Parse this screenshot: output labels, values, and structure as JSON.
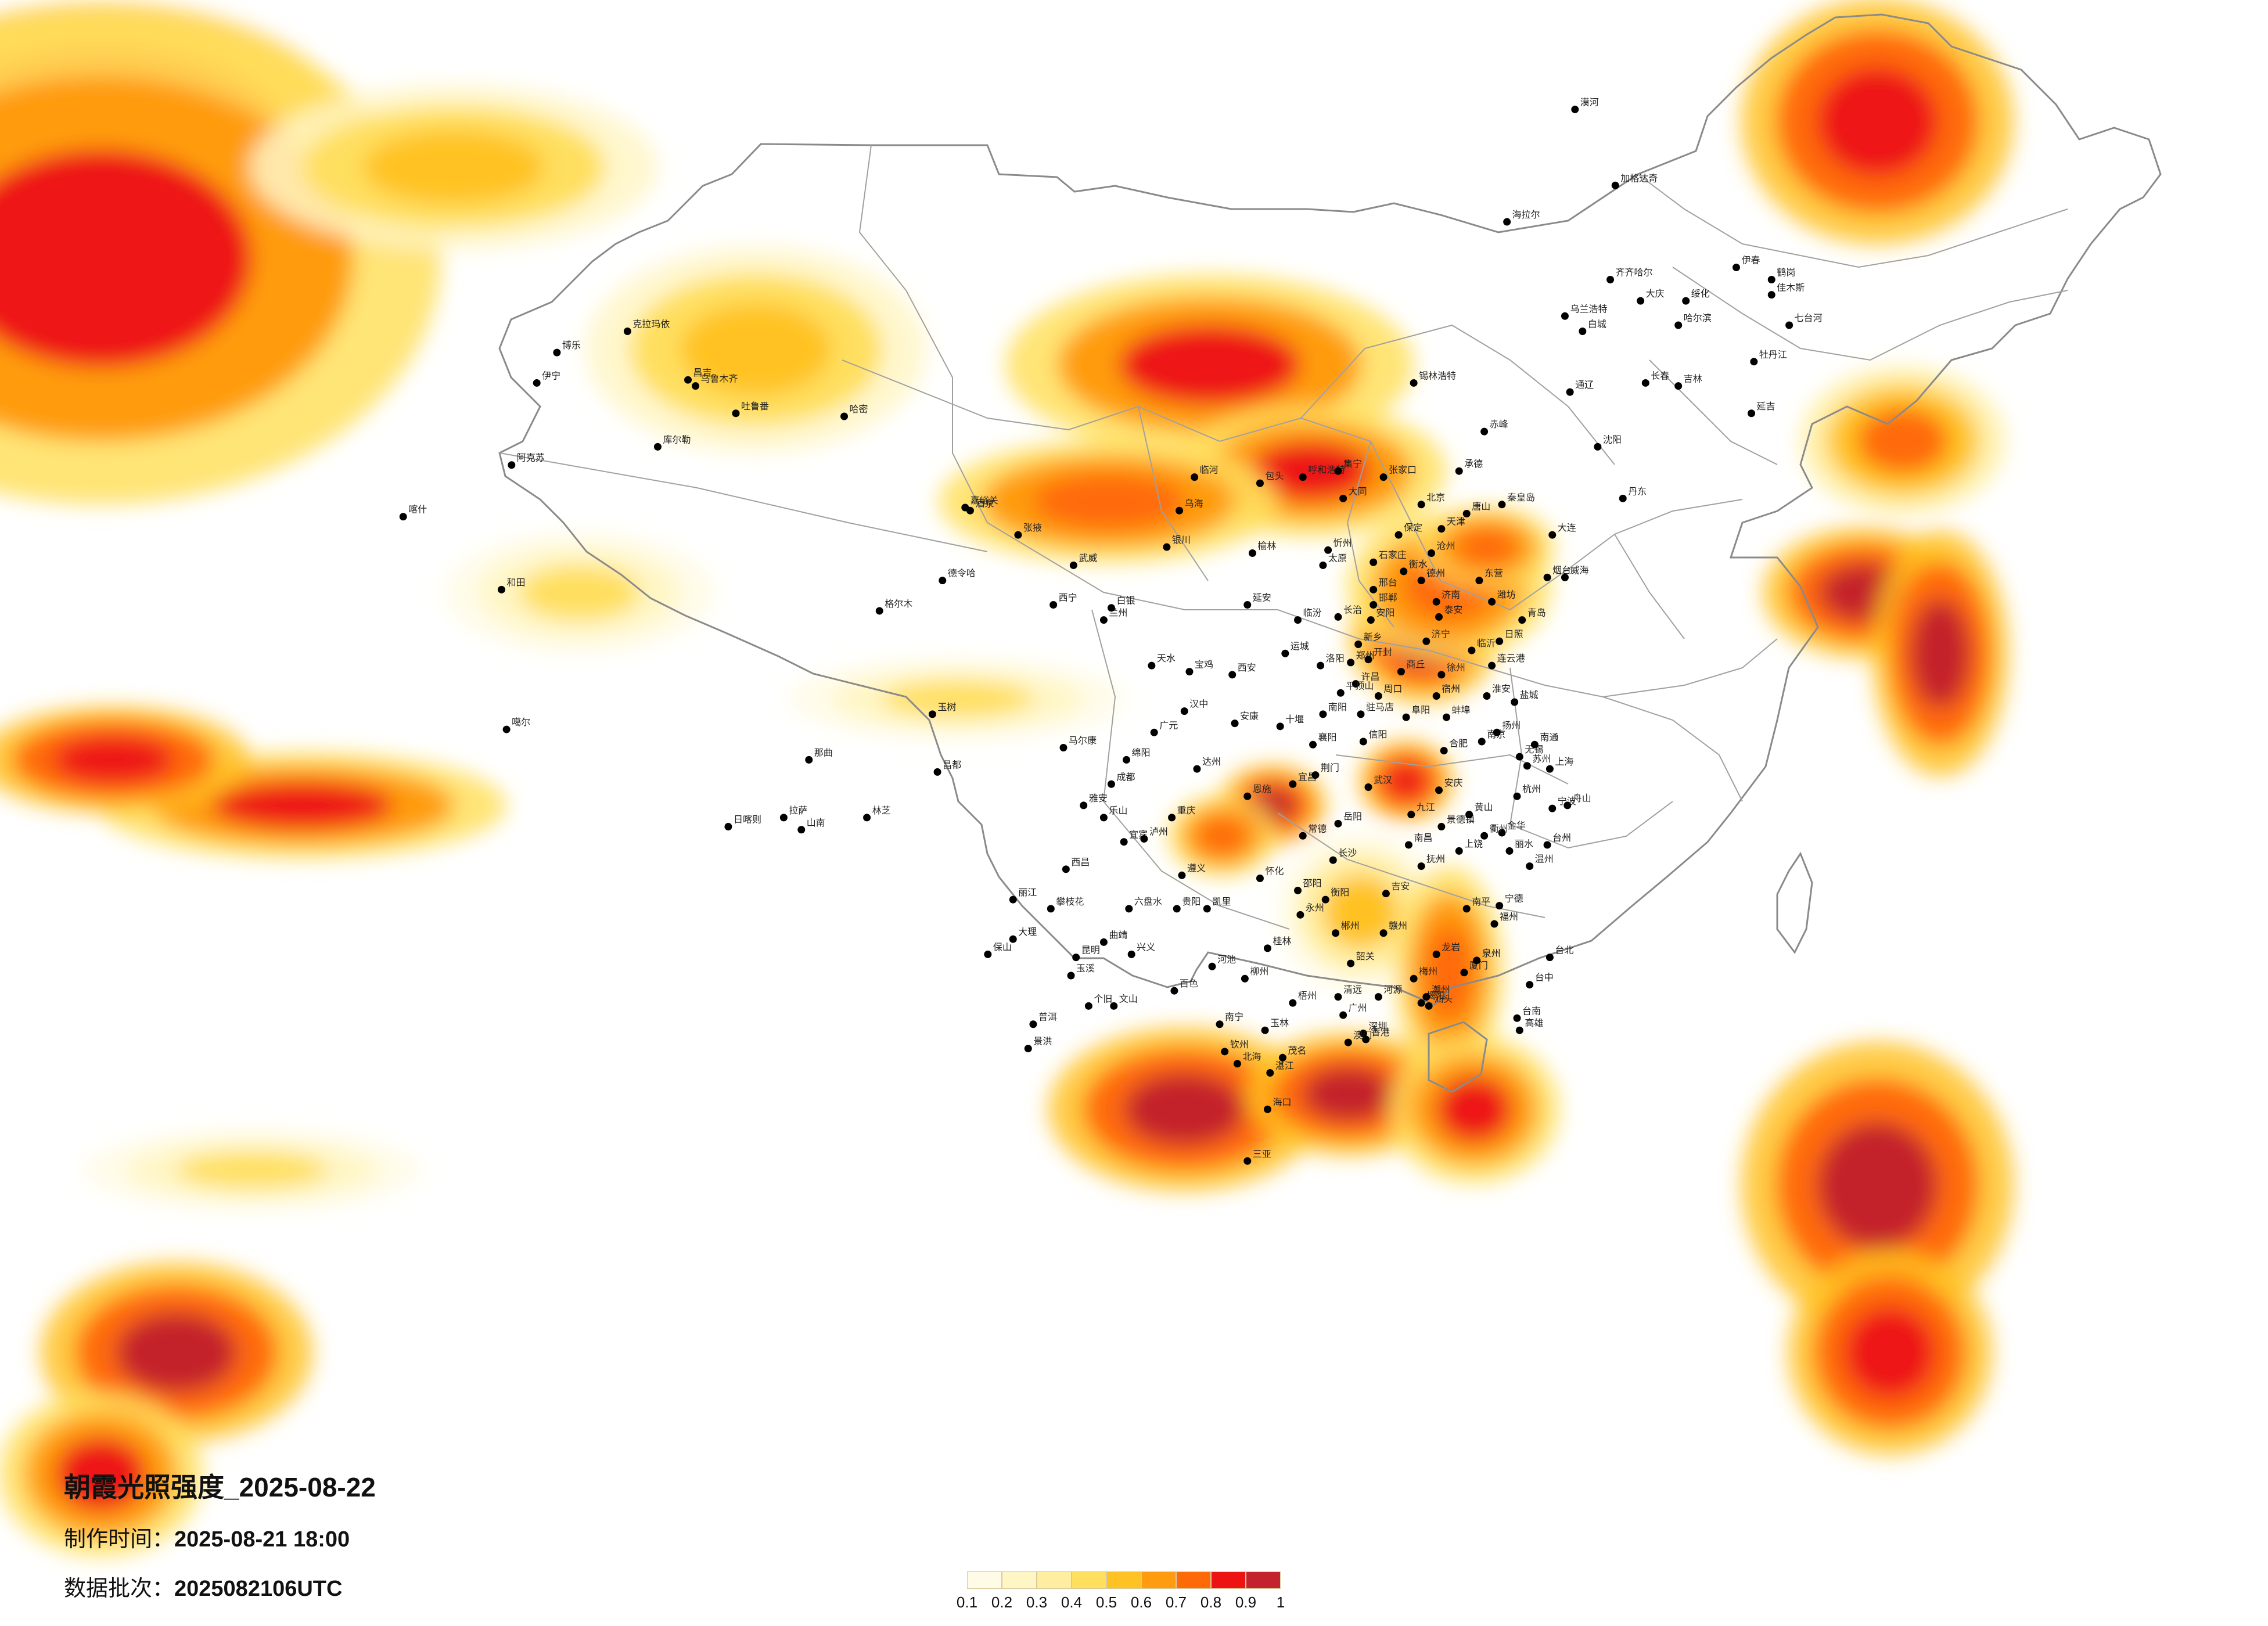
{
  "map": {
    "title": "朝霞光照强度_2025-08-22",
    "produced_label": "制作时间：",
    "produced_value": "2025-08-21 18:00",
    "batch_label": "数据批次：",
    "batch_value": "2025082106UTC"
  },
  "legend": {
    "colors": [
      "#fffbe6",
      "#fff6c6",
      "#ffeea0",
      "#ffdf5e",
      "#ffc223",
      "#ff9b0f",
      "#ff6a08",
      "#ee1313",
      "#c4222c"
    ],
    "labels": [
      "0.1",
      "0.2",
      "0.3",
      "0.4",
      "0.5",
      "0.6",
      "0.7",
      "0.8",
      "0.9",
      "1"
    ]
  },
  "cities": [
    {
      "name": "漠河",
      "lon": 122.5,
      "lat": 52.9
    },
    {
      "name": "加格达奇",
      "lon": 124.1,
      "lat": 50.4
    },
    {
      "name": "海拉尔",
      "lon": 119.8,
      "lat": 49.2
    },
    {
      "name": "齐齐哈尔",
      "lon": 123.9,
      "lat": 47.3
    },
    {
      "name": "大庆",
      "lon": 125.1,
      "lat": 46.6
    },
    {
      "name": "伊春",
      "lon": 128.9,
      "lat": 47.7
    },
    {
      "name": "鹤岗",
      "lon": 130.3,
      "lat": 47.3
    },
    {
      "name": "佳木斯",
      "lon": 130.3,
      "lat": 46.8
    },
    {
      "name": "绥化",
      "lon": 126.9,
      "lat": 46.6
    },
    {
      "name": "哈尔滨",
      "lon": 126.6,
      "lat": 45.8
    },
    {
      "name": "七台河",
      "lon": 131.0,
      "lat": 45.8
    },
    {
      "name": "牡丹江",
      "lon": 129.6,
      "lat": 44.6
    },
    {
      "name": "乌兰浩特",
      "lon": 122.1,
      "lat": 46.1
    },
    {
      "name": "白城",
      "lon": 122.8,
      "lat": 45.6
    },
    {
      "name": "长春",
      "lon": 125.3,
      "lat": 43.9
    },
    {
      "name": "吉林",
      "lon": 126.6,
      "lat": 43.8
    },
    {
      "name": "通辽",
      "lon": 122.3,
      "lat": 43.6
    },
    {
      "name": "锡林浩特",
      "lon": 116.1,
      "lat": 43.9
    },
    {
      "name": "延吉",
      "lon": 129.5,
      "lat": 42.9
    },
    {
      "name": "沈阳",
      "lon": 123.4,
      "lat": 41.8
    },
    {
      "name": "赤峰",
      "lon": 118.9,
      "lat": 42.3
    },
    {
      "name": "大连",
      "lon": 121.6,
      "lat": 38.9
    },
    {
      "name": "丹东",
      "lon": 124.4,
      "lat": 40.1
    },
    {
      "name": "呼和浩特",
      "lon": 111.7,
      "lat": 40.8
    },
    {
      "name": "包头",
      "lon": 110.0,
      "lat": 40.6
    },
    {
      "name": "集宁",
      "lon": 113.1,
      "lat": 41.0
    },
    {
      "name": "张家口",
      "lon": 114.9,
      "lat": 40.8
    },
    {
      "name": "北京",
      "lon": 116.4,
      "lat": 39.9
    },
    {
      "name": "承德",
      "lon": 117.9,
      "lat": 41.0
    },
    {
      "name": "天津",
      "lon": 117.2,
      "lat": 39.1
    },
    {
      "name": "唐山",
      "lon": 118.2,
      "lat": 39.6
    },
    {
      "name": "秦皇岛",
      "lon": 119.6,
      "lat": 39.9
    },
    {
      "name": "保定",
      "lon": 115.5,
      "lat": 38.9
    },
    {
      "name": "石家庄",
      "lon": 114.5,
      "lat": 38.0
    },
    {
      "name": "大同",
      "lon": 113.3,
      "lat": 40.1
    },
    {
      "name": "太原",
      "lon": 112.5,
      "lat": 37.9
    },
    {
      "name": "忻州",
      "lon": 112.7,
      "lat": 38.4
    },
    {
      "name": "临河",
      "lon": 107.4,
      "lat": 40.8
    },
    {
      "name": "乌海",
      "lon": 106.8,
      "lat": 39.7
    },
    {
      "name": "银川",
      "lon": 106.3,
      "lat": 38.5
    },
    {
      "name": "榆林",
      "lon": 109.7,
      "lat": 38.3
    },
    {
      "name": "延安",
      "lon": 109.5,
      "lat": 36.6
    },
    {
      "name": "兰州",
      "lon": 103.8,
      "lat": 36.1
    },
    {
      "name": "西宁",
      "lon": 101.8,
      "lat": 36.6
    },
    {
      "name": "白银",
      "lon": 104.1,
      "lat": 36.5
    },
    {
      "name": "德令哈",
      "lon": 97.4,
      "lat": 37.4
    },
    {
      "name": "格尔木",
      "lon": 94.9,
      "lat": 36.4
    },
    {
      "name": "酒泉",
      "lon": 98.5,
      "lat": 39.7
    },
    {
      "name": "嘉峪关",
      "lon": 98.3,
      "lat": 39.8
    },
    {
      "name": "张掖",
      "lon": 100.4,
      "lat": 38.9
    },
    {
      "name": "武威",
      "lon": 102.6,
      "lat": 37.9
    },
    {
      "name": "哈密",
      "lon": 93.5,
      "lat": 42.8
    },
    {
      "name": "吐鲁番",
      "lon": 89.2,
      "lat": 42.9
    },
    {
      "name": "乌鲁木齐",
      "lon": 87.6,
      "lat": 43.8
    },
    {
      "name": "昌吉",
      "lon": 87.3,
      "lat": 44.0
    },
    {
      "name": "克拉玛依",
      "lon": 84.9,
      "lat": 45.6
    },
    {
      "name": "伊宁",
      "lon": 81.3,
      "lat": 43.9
    },
    {
      "name": "博乐",
      "lon": 82.1,
      "lat": 44.9
    },
    {
      "name": "库尔勒",
      "lon": 86.1,
      "lat": 41.8
    },
    {
      "name": "阿克苏",
      "lon": 80.3,
      "lat": 41.2
    },
    {
      "name": "喀什",
      "lon": 76.0,
      "lat": 39.5
    },
    {
      "name": "和田",
      "lon": 79.9,
      "lat": 37.1
    },
    {
      "name": "噶尔",
      "lon": 80.1,
      "lat": 32.5
    },
    {
      "name": "那曲",
      "lon": 92.1,
      "lat": 31.5
    },
    {
      "name": "日喀则",
      "lon": 88.9,
      "lat": 29.3
    },
    {
      "name": "拉萨",
      "lon": 91.1,
      "lat": 29.6
    },
    {
      "name": "山南",
      "lon": 91.8,
      "lat": 29.2
    },
    {
      "name": "林芝",
      "lon": 94.4,
      "lat": 29.6
    },
    {
      "name": "昌都",
      "lon": 97.2,
      "lat": 31.1
    },
    {
      "name": "玉树",
      "lon": 97.0,
      "lat": 33.0
    },
    {
      "name": "马尔康",
      "lon": 102.2,
      "lat": 31.9
    },
    {
      "name": "成都",
      "lon": 104.1,
      "lat": 30.7
    },
    {
      "name": "绵阳",
      "lon": 104.7,
      "lat": 31.5
    },
    {
      "name": "广元",
      "lon": 105.8,
      "lat": 32.4
    },
    {
      "name": "汉中",
      "lon": 107.0,
      "lat": 33.1
    },
    {
      "name": "宝鸡",
      "lon": 107.2,
      "lat": 34.4
    },
    {
      "name": "天水",
      "lon": 105.7,
      "lat": 34.6
    },
    {
      "name": "西安",
      "lon": 108.9,
      "lat": 34.3
    },
    {
      "name": "安康",
      "lon": 109.0,
      "lat": 32.7
    },
    {
      "name": "雅安",
      "lon": 103.0,
      "lat": 30.0
    },
    {
      "name": "乐山",
      "lon": 103.8,
      "lat": 29.6
    },
    {
      "name": "西昌",
      "lon": 102.3,
      "lat": 27.9
    },
    {
      "name": "攀枝花",
      "lon": 101.7,
      "lat": 26.6
    },
    {
      "name": "丽江",
      "lon": 100.2,
      "lat": 26.9
    },
    {
      "name": "大理",
      "lon": 100.2,
      "lat": 25.6
    },
    {
      "name": "保山",
      "lon": 99.2,
      "lat": 25.1
    },
    {
      "name": "昆明",
      "lon": 102.7,
      "lat": 25.0
    },
    {
      "name": "曲靖",
      "lon": 103.8,
      "lat": 25.5
    },
    {
      "name": "玉溪",
      "lon": 102.5,
      "lat": 24.4
    },
    {
      "name": "普洱",
      "lon": 101.0,
      "lat": 22.8
    },
    {
      "name": "景洪",
      "lon": 100.8,
      "lat": 22.0
    },
    {
      "name": "个旧",
      "lon": 103.2,
      "lat": 23.4
    },
    {
      "name": "文山",
      "lon": 104.2,
      "lat": 23.4
    },
    {
      "name": "六盘水",
      "lon": 104.8,
      "lat": 26.6
    },
    {
      "name": "贵阳",
      "lon": 106.7,
      "lat": 26.6
    },
    {
      "name": "遵义",
      "lon": 106.9,
      "lat": 27.7
    },
    {
      "name": "兴义",
      "lon": 104.9,
      "lat": 25.1
    },
    {
      "name": "凯里",
      "lon": 107.9,
      "lat": 26.6
    },
    {
      "name": "重庆",
      "lon": 106.5,
      "lat": 29.6
    },
    {
      "name": "达州",
      "lon": 107.5,
      "lat": 31.2
    },
    {
      "name": "宜宾",
      "lon": 104.6,
      "lat": 28.8
    },
    {
      "name": "泸州",
      "lon": 105.4,
      "lat": 28.9
    },
    {
      "name": "恩施",
      "lon": 109.5,
      "lat": 30.3
    },
    {
      "name": "十堰",
      "lon": 110.8,
      "lat": 32.6
    },
    {
      "name": "宜昌",
      "lon": 111.3,
      "lat": 30.7
    },
    {
      "name": "襄阳",
      "lon": 112.1,
      "lat": 32.0
    },
    {
      "name": "荆门",
      "lon": 112.2,
      "lat": 31.0
    },
    {
      "name": "武汉",
      "lon": 114.3,
      "lat": 30.6
    },
    {
      "name": "岳阳",
      "lon": 113.1,
      "lat": 29.4
    },
    {
      "name": "长沙",
      "lon": 112.9,
      "lat": 28.2
    },
    {
      "name": "常德",
      "lon": 111.7,
      "lat": 29.0
    },
    {
      "name": "怀化",
      "lon": 110.0,
      "lat": 27.6
    },
    {
      "name": "邵阳",
      "lon": 111.5,
      "lat": 27.2
    },
    {
      "name": "衡阳",
      "lon": 112.6,
      "lat": 26.9
    },
    {
      "name": "永州",
      "lon": 111.6,
      "lat": 26.4
    },
    {
      "name": "郴州",
      "lon": 113.0,
      "lat": 25.8
    },
    {
      "name": "桂林",
      "lon": 110.3,
      "lat": 25.3
    },
    {
      "name": "柳州",
      "lon": 109.4,
      "lat": 24.3
    },
    {
      "name": "河池",
      "lon": 108.1,
      "lat": 24.7
    },
    {
      "name": "百色",
      "lon": 106.6,
      "lat": 23.9
    },
    {
      "name": "南宁",
      "lon": 108.4,
      "lat": 22.8
    },
    {
      "name": "钦州",
      "lon": 108.6,
      "lat": 21.9
    },
    {
      "name": "北海",
      "lon": 109.1,
      "lat": 21.5
    },
    {
      "name": "玉林",
      "lon": 110.2,
      "lat": 22.6
    },
    {
      "name": "梧州",
      "lon": 111.3,
      "lat": 23.5
    },
    {
      "name": "湛江",
      "lon": 110.4,
      "lat": 21.2
    },
    {
      "name": "茂名",
      "lon": 110.9,
      "lat": 21.7
    },
    {
      "name": "海口",
      "lon": 110.3,
      "lat": 20.0
    },
    {
      "name": "三亚",
      "lon": 109.5,
      "lat": 18.3
    },
    {
      "name": "广州",
      "lon": 113.3,
      "lat": 23.1
    },
    {
      "name": "深圳",
      "lon": 114.1,
      "lat": 22.5
    },
    {
      "name": "清远",
      "lon": 113.1,
      "lat": 23.7
    },
    {
      "name": "韶关",
      "lon": 113.6,
      "lat": 24.8
    },
    {
      "name": "河源",
      "lon": 114.7,
      "lat": 23.7
    },
    {
      "name": "梅州",
      "lon": 116.1,
      "lat": 24.3
    },
    {
      "name": "汕头",
      "lon": 116.7,
      "lat": 23.4
    },
    {
      "name": "揭阳",
      "lon": 116.4,
      "lat": 23.5
    },
    {
      "name": "潮州",
      "lon": 116.6,
      "lat": 23.7
    },
    {
      "name": "赣州",
      "lon": 114.9,
      "lat": 25.8
    },
    {
      "name": "吉安",
      "lon": 115.0,
      "lat": 27.1
    },
    {
      "name": "南昌",
      "lon": 115.9,
      "lat": 28.7
    },
    {
      "name": "九江",
      "lon": 116.0,
      "lat": 29.7
    },
    {
      "name": "景德镇",
      "lon": 117.2,
      "lat": 29.3
    },
    {
      "name": "上饶",
      "lon": 117.9,
      "lat": 28.5
    },
    {
      "name": "抚州",
      "lon": 116.4,
      "lat": 28.0
    },
    {
      "name": "龙岩",
      "lon": 117.0,
      "lat": 25.1
    },
    {
      "name": "厦门",
      "lon": 118.1,
      "lat": 24.5
    },
    {
      "name": "泉州",
      "lon": 118.6,
      "lat": 24.9
    },
    {
      "name": "福州",
      "lon": 119.3,
      "lat": 26.1
    },
    {
      "name": "南平",
      "lon": 118.2,
      "lat": 26.6
    },
    {
      "name": "宁德",
      "lon": 119.5,
      "lat": 26.7
    },
    {
      "name": "温州",
      "lon": 120.7,
      "lat": 28.0
    },
    {
      "name": "丽水",
      "lon": 119.9,
      "lat": 28.5
    },
    {
      "name": "金华",
      "lon": 119.6,
      "lat": 29.1
    },
    {
      "name": "衢州",
      "lon": 118.9,
      "lat": 29.0
    },
    {
      "name": "杭州",
      "lon": 120.2,
      "lat": 30.3
    },
    {
      "name": "宁波",
      "lon": 121.6,
      "lat": 29.9
    },
    {
      "name": "舟山",
      "lon": 122.2,
      "lat": 30.0
    },
    {
      "name": "台州",
      "lon": 121.4,
      "lat": 28.7
    },
    {
      "name": "上海",
      "lon": 121.5,
      "lat": 31.2
    },
    {
      "name": "苏州",
      "lon": 120.6,
      "lat": 31.3
    },
    {
      "name": "无锡",
      "lon": 120.3,
      "lat": 31.6
    },
    {
      "name": "南京",
      "lon": 118.8,
      "lat": 32.1
    },
    {
      "name": "扬州",
      "lon": 119.4,
      "lat": 32.4
    },
    {
      "name": "南通",
      "lon": 120.9,
      "lat": 32.0
    },
    {
      "name": "盐城",
      "lon": 120.1,
      "lat": 33.4
    },
    {
      "name": "淮安",
      "lon": 119.0,
      "lat": 33.6
    },
    {
      "name": "连云港",
      "lon": 119.2,
      "lat": 34.6
    },
    {
      "name": "徐州",
      "lon": 117.2,
      "lat": 34.3
    },
    {
      "name": "宿州",
      "lon": 117.0,
      "lat": 33.6
    },
    {
      "name": "蚌埠",
      "lon": 117.4,
      "lat": 32.9
    },
    {
      "name": "合肥",
      "lon": 117.3,
      "lat": 31.8
    },
    {
      "name": "安庆",
      "lon": 117.1,
      "lat": 30.5
    },
    {
      "name": "黄山",
      "lon": 118.3,
      "lat": 29.7
    },
    {
      "name": "阜阳",
      "lon": 115.8,
      "lat": 32.9
    },
    {
      "name": "信阳",
      "lon": 114.1,
      "lat": 32.1
    },
    {
      "name": "南阳",
      "lon": 112.5,
      "lat": 33.0
    },
    {
      "name": "驻马店",
      "lon": 114.0,
      "lat": 33.0
    },
    {
      "name": "周口",
      "lon": 114.7,
      "lat": 33.6
    },
    {
      "name": "许昌",
      "lon": 113.8,
      "lat": 34.0
    },
    {
      "name": "平顶山",
      "lon": 113.2,
      "lat": 33.7
    },
    {
      "name": "洛阳",
      "lon": 112.4,
      "lat": 34.6
    },
    {
      "name": "郑州",
      "lon": 113.6,
      "lat": 34.7
    },
    {
      "name": "开封",
      "lon": 114.3,
      "lat": 34.8
    },
    {
      "name": "商丘",
      "lon": 115.6,
      "lat": 34.4
    },
    {
      "name": "新乡",
      "lon": 113.9,
      "lat": 35.3
    },
    {
      "name": "安阳",
      "lon": 114.4,
      "lat": 36.1
    },
    {
      "name": "邯郸",
      "lon": 114.5,
      "lat": 36.6
    },
    {
      "name": "邢台",
      "lon": 114.5,
      "lat": 37.1
    },
    {
      "name": "衡水",
      "lon": 115.7,
      "lat": 37.7
    },
    {
      "name": "沧州",
      "lon": 116.8,
      "lat": 38.3
    },
    {
      "name": "德州",
      "lon": 116.4,
      "lat": 37.4
    },
    {
      "name": "济南",
      "lon": 117.0,
      "lat": 36.7
    },
    {
      "name": "泰安",
      "lon": 117.1,
      "lat": 36.2
    },
    {
      "name": "济宁",
      "lon": 116.6,
      "lat": 35.4
    },
    {
      "name": "临沂",
      "lon": 118.4,
      "lat": 35.1
    },
    {
      "name": "日照",
      "lon": 119.5,
      "lat": 35.4
    },
    {
      "name": "潍坊",
      "lon": 119.2,
      "lat": 36.7
    },
    {
      "name": "青岛",
      "lon": 120.4,
      "lat": 36.1
    },
    {
      "name": "烟台",
      "lon": 121.4,
      "lat": 37.5
    },
    {
      "name": "威海",
      "lon": 122.1,
      "lat": 37.5
    },
    {
      "name": "东营",
      "lon": 118.7,
      "lat": 37.4
    },
    {
      "name": "长治",
      "lon": 113.1,
      "lat": 36.2
    },
    {
      "name": "临汾",
      "lon": 111.5,
      "lat": 36.1
    },
    {
      "name": "运城",
      "lon": 111.0,
      "lat": 35.0
    },
    {
      "name": "台北",
      "lon": 121.5,
      "lat": 25.0
    },
    {
      "name": "台中",
      "lon": 120.7,
      "lat": 24.1
    },
    {
      "name": "台南",
      "lon": 120.2,
      "lat": 23.0
    },
    {
      "name": "高雄",
      "lon": 120.3,
      "lat": 22.6
    },
    {
      "name": "香港",
      "lon": 114.2,
      "lat": 22.3
    },
    {
      "name": "澳门",
      "lon": 113.5,
      "lat": 22.2
    }
  ],
  "glow_regions": [
    {
      "lon": 64.0,
      "lat": 51.0,
      "rx": 8,
      "ry": 4,
      "level": 1.0
    },
    {
      "lon": 64.0,
      "lat": 48.0,
      "rx": 10,
      "ry": 6,
      "level": 0.85
    },
    {
      "lon": 108.0,
      "lat": 44.5,
      "rx": 6,
      "ry": 2.2,
      "level": 0.85
    },
    {
      "lon": 112.0,
      "lat": 41.0,
      "rx": 4,
      "ry": 1.6,
      "level": 0.85
    },
    {
      "lon": 104.0,
      "lat": 40.0,
      "rx": 5,
      "ry": 1.5,
      "level": 0.8
    },
    {
      "lon": 90.0,
      "lat": 45.0,
      "rx": 5,
      "ry": 2.5,
      "level": 0.55
    },
    {
      "lon": 78.0,
      "lat": 51.0,
      "rx": 6,
      "ry": 2,
      "level": 0.55
    },
    {
      "lon": 116.5,
      "lat": 35.5,
      "rx": 2.2,
      "ry": 1.6,
      "level": 1.0
    },
    {
      "lon": 117.5,
      "lat": 37.2,
      "rx": 3,
      "ry": 1.8,
      "level": 0.8
    },
    {
      "lon": 119.0,
      "lat": 38.5,
      "rx": 2,
      "ry": 1.0,
      "level": 0.8
    },
    {
      "lon": 110.5,
      "lat": 30.0,
      "rx": 1.6,
      "ry": 1.0,
      "level": 0.95
    },
    {
      "lon": 108.5,
      "lat": 29.0,
      "rx": 1.6,
      "ry": 1.0,
      "level": 0.8
    },
    {
      "lon": 115.8,
      "lat": 30.8,
      "rx": 1.4,
      "ry": 1.0,
      "level": 0.9
    },
    {
      "lon": 114.0,
      "lat": 26.5,
      "rx": 2.5,
      "ry": 2.0,
      "level": 0.45
    },
    {
      "lon": 117.5,
      "lat": 24.5,
      "rx": 1.6,
      "ry": 2.6,
      "level": 0.8
    },
    {
      "lon": 107.0,
      "lat": 20.0,
      "rx": 4,
      "ry": 2.0,
      "level": 1.0
    },
    {
      "lon": 113.5,
      "lat": 20.5,
      "rx": 3,
      "ry": 1.5,
      "level": 0.95
    },
    {
      "lon": 118.5,
      "lat": 20.0,
      "rx": 2.5,
      "ry": 1.8,
      "level": 0.85
    },
    {
      "lon": 134.5,
      "lat": 52.5,
      "rx": 4,
      "ry": 3.0,
      "level": 0.9
    },
    {
      "lon": 135.5,
      "lat": 42.0,
      "rx": 3,
      "ry": 1.8,
      "level": 0.7
    },
    {
      "lon": 134.0,
      "lat": 37.0,
      "rx": 3,
      "ry": 1.6,
      "level": 1.0
    },
    {
      "lon": 137.0,
      "lat": 35.0,
      "rx": 2,
      "ry": 3.0,
      "level": 0.95
    },
    {
      "lon": 134.5,
      "lat": 17.5,
      "rx": 4,
      "ry": 3.5,
      "level": 1.0
    },
    {
      "lon": 135.0,
      "lat": 12.0,
      "rx": 3,
      "ry": 2.5,
      "level": 0.9
    },
    {
      "lon": 72.0,
      "lat": 30.0,
      "rx": 6,
      "ry": 1.3,
      "level": 0.85
    },
    {
      "lon": 64.5,
      "lat": 31.5,
      "rx": 4,
      "ry": 1.3,
      "level": 0.9
    },
    {
      "lon": 67.0,
      "lat": 12.0,
      "rx": 4,
      "ry": 2.2,
      "level": 1.0
    },
    {
      "lon": 64.0,
      "lat": 8.0,
      "rx": 3,
      "ry": 2.0,
      "level": 0.85
    },
    {
      "lon": 70.0,
      "lat": 18.0,
      "rx": 5,
      "ry": 1.0,
      "level": 0.35
    },
    {
      "lon": 83.0,
      "lat": 37.0,
      "rx": 4,
      "ry": 1.5,
      "level": 0.35
    },
    {
      "lon": 98.0,
      "lat": 33.5,
      "rx": 5,
      "ry": 1.0,
      "level": 0.35
    }
  ]
}
